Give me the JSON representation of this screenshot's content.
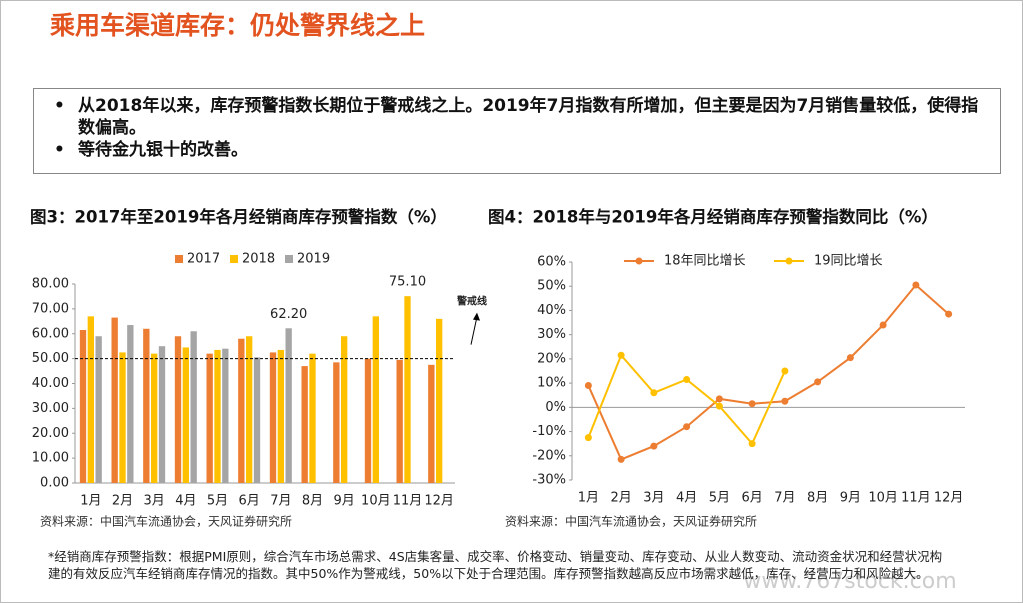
{
  "title": "乘用车渠道库存：仍处警界线之上",
  "bullets": [
    "从2018年以来，库存预警指数长期位于警戒线之上。2019年7月指数有所增加，但主要是因为7月销售量较低，使得指数偏高。",
    "等待金九银十的改善。"
  ],
  "chart_data": [
    {
      "type": "bar",
      "title": "图3：2017年至2019年各月经销商库存预警指数（%）",
      "source": "资料来源：中国汽车流通协会，天风证券研究所",
      "categories": [
        "1月",
        "2月",
        "3月",
        "4月",
        "5月",
        "6月",
        "7月",
        "8月",
        "9月",
        "10月",
        "11月",
        "12月"
      ],
      "series": [
        {
          "name": "2017",
          "color": "#ed7d31",
          "values": [
            61.5,
            66.5,
            62,
            59,
            52,
            58,
            52.5,
            47,
            48.5,
            50,
            49.5,
            47.5
          ]
        },
        {
          "name": "2018",
          "color": "#ffc000",
          "values": [
            67,
            52.5,
            52,
            54.5,
            53.5,
            59,
            53.5,
            52,
            59,
            67,
            75.1,
            66
          ],
          "value_labels": [
            null,
            null,
            null,
            null,
            null,
            null,
            null,
            null,
            null,
            null,
            "75.10",
            null
          ]
        },
        {
          "name": "2019",
          "color": "#a5a5a5",
          "values": [
            59,
            63.5,
            55,
            61,
            54,
            50.5,
            62.2,
            null,
            null,
            null,
            null,
            null
          ],
          "value_labels": [
            null,
            null,
            null,
            null,
            null,
            null,
            "62.20",
            null,
            null,
            null,
            null,
            null
          ]
        }
      ],
      "ylim": [
        0,
        80
      ],
      "yticks": [
        {
          "value": 0,
          "label": "0.00"
        },
        {
          "value": 10,
          "label": "10.00"
        },
        {
          "value": 20,
          "label": "20.00"
        },
        {
          "value": 30,
          "label": "30.00"
        },
        {
          "value": 40,
          "label": "40.00"
        },
        {
          "value": 50,
          "label": "50.00"
        },
        {
          "value": 60,
          "label": "60.00"
        },
        {
          "value": 70,
          "label": "70.00"
        },
        {
          "value": 80,
          "label": "80.00"
        }
      ],
      "threshold": 50,
      "threshold_label": "警戒线",
      "legend": "top",
      "grid": false
    },
    {
      "type": "line",
      "title": "图4：2018年与2019年各月经销商库存预警指数同比（%）",
      "source": "资料来源：中国汽车流通协会，天风证券研究所",
      "categories": [
        "1月",
        "2月",
        "3月",
        "4月",
        "5月",
        "6月",
        "7月",
        "8月",
        "9月",
        "10月",
        "11月",
        "12月"
      ],
      "series": [
        {
          "name": "18年同比增长",
          "color": "#ed7d31",
          "values": [
            9,
            -21.5,
            -16,
            -8,
            3.5,
            1.5,
            2.5,
            10.5,
            20.5,
            34,
            50.5,
            38.5
          ]
        },
        {
          "name": "19同比增长",
          "color": "#ffc000",
          "values": [
            -12.5,
            21.5,
            6,
            11.5,
            0.5,
            -15,
            15,
            null,
            null,
            null,
            null,
            null
          ]
        }
      ],
      "ylim": [
        -30,
        60
      ],
      "yticks": [
        {
          "value": -30,
          "label": "-30%"
        },
        {
          "value": -20,
          "label": "-20%"
        },
        {
          "value": -10,
          "label": "-10%"
        },
        {
          "value": 0,
          "label": "0%"
        },
        {
          "value": 10,
          "label": "10%"
        },
        {
          "value": 20,
          "label": "20%"
        },
        {
          "value": 30,
          "label": "30%"
        },
        {
          "value": 40,
          "label": "40%"
        },
        {
          "value": 50,
          "label": "50%"
        },
        {
          "value": 60,
          "label": "60%"
        }
      ],
      "legend": "top",
      "grid": false
    }
  ],
  "footnote": "*经销商库存预警指数：根据PMI原则，综合汽车市场总需求、4S店集客量、成交率、价格变动、销量变动、库存变动、从业人数变动、流动资金状况和经营状况构建的有效反应汽车经销商库存情况的指数。其中50%作为警戒线，50%以下处于合理范围。库存预警指数越高反应市场需求越低，库存、经营压力和风险越大。",
  "watermark": "www.767stock.com"
}
